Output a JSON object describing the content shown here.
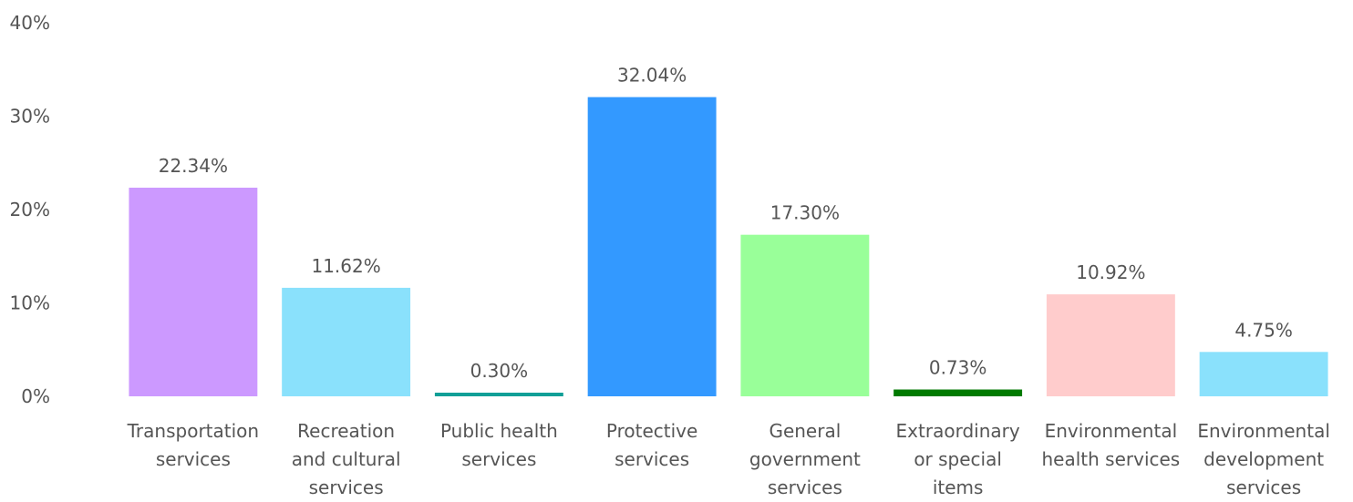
{
  "chart_data": {
    "type": "bar",
    "categories": [
      [
        "Transportation",
        "services"
      ],
      [
        "Recreation",
        "and cultural",
        "services"
      ],
      [
        "Public health",
        "services"
      ],
      [
        "Protective",
        "services"
      ],
      [
        "General",
        "government",
        "services"
      ],
      [
        "Extraordinary",
        "or special",
        "items"
      ],
      [
        "Environmental",
        "health services"
      ],
      [
        "Environmental",
        "development",
        "services"
      ]
    ],
    "values": [
      22.34,
      11.62,
      0.3,
      32.04,
      17.3,
      0.73,
      10.92,
      4.75
    ],
    "data_labels": [
      "22.34%",
      "11.62%",
      "0.30%",
      "32.04%",
      "17.30%",
      "0.73%",
      "10.92%",
      "4.75%"
    ],
    "colors": [
      "#cc99ff",
      "#8ae1fc",
      "#119f97",
      "#3399ff",
      "#99ff99",
      "#007a00",
      "#ffcccc",
      "#8ae1fc"
    ],
    "y_ticks": [
      {
        "value": 0,
        "label": "0%"
      },
      {
        "value": 10,
        "label": "10%"
      },
      {
        "value": 20,
        "label": "20%"
      },
      {
        "value": 30,
        "label": "30%"
      },
      {
        "value": 40,
        "label": "40%"
      }
    ],
    "ylim": [
      0,
      40
    ],
    "grid": false,
    "legend": "none"
  }
}
